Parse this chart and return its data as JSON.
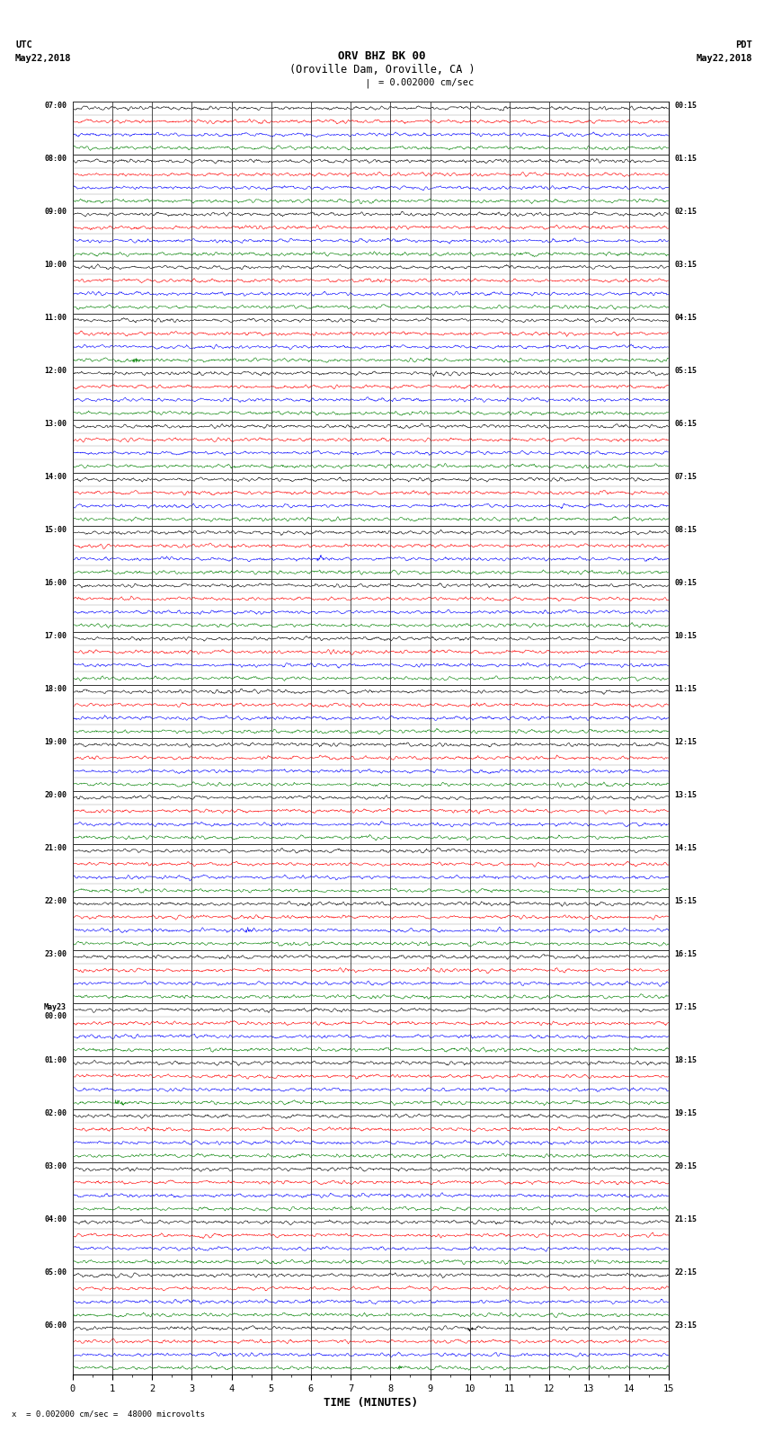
{
  "title_line1": "ORV BHZ BK 00",
  "title_line2": "(Oroville Dam, Oroville, CA )",
  "scale_label": "I  = 0.002000 cm/sec",
  "left_header1": "UTC",
  "left_header2": "May22,2018",
  "right_header1": "PDT",
  "right_header2": "May22,2018",
  "bottom_note": "x  = 0.002000 cm/sec =  48000 microvolts",
  "xlabel": "TIME (MINUTES)",
  "xlim": [
    0,
    15
  ],
  "xticks": [
    0,
    1,
    2,
    3,
    4,
    5,
    6,
    7,
    8,
    9,
    10,
    11,
    12,
    13,
    14,
    15
  ],
  "left_times_labeled": {
    "0": "07:00",
    "4": "08:00",
    "8": "09:00",
    "12": "10:00",
    "16": "11:00",
    "20": "12:00",
    "24": "13:00",
    "28": "14:00",
    "32": "15:00",
    "36": "16:00",
    "40": "17:00",
    "44": "18:00",
    "48": "19:00",
    "52": "20:00",
    "56": "21:00",
    "60": "22:00",
    "64": "23:00",
    "68": "May23\n00:00",
    "72": "01:00",
    "76": "02:00",
    "80": "03:00",
    "84": "04:00",
    "88": "05:00",
    "92": "06:00"
  },
  "right_times_labeled": {
    "0": "00:15",
    "4": "01:15",
    "8": "02:15",
    "12": "03:15",
    "16": "04:15",
    "20": "05:15",
    "24": "06:15",
    "28": "07:15",
    "32": "08:15",
    "36": "09:15",
    "40": "10:15",
    "44": "11:15",
    "48": "12:15",
    "52": "13:15",
    "56": "14:15",
    "60": "15:15",
    "64": "16:15",
    "68": "17:15",
    "72": "18:15",
    "76": "19:15",
    "80": "20:15",
    "84": "21:15",
    "88": "22:15",
    "92": "23:15"
  },
  "trace_colors": [
    "black",
    "red",
    "blue",
    "green"
  ],
  "n_hours": 24,
  "n_traces_per_hour": 4,
  "background_color": "white",
  "major_grid_color": "#333333",
  "minor_grid_color": "#999999",
  "fig_width": 8.5,
  "fig_height": 16.13
}
